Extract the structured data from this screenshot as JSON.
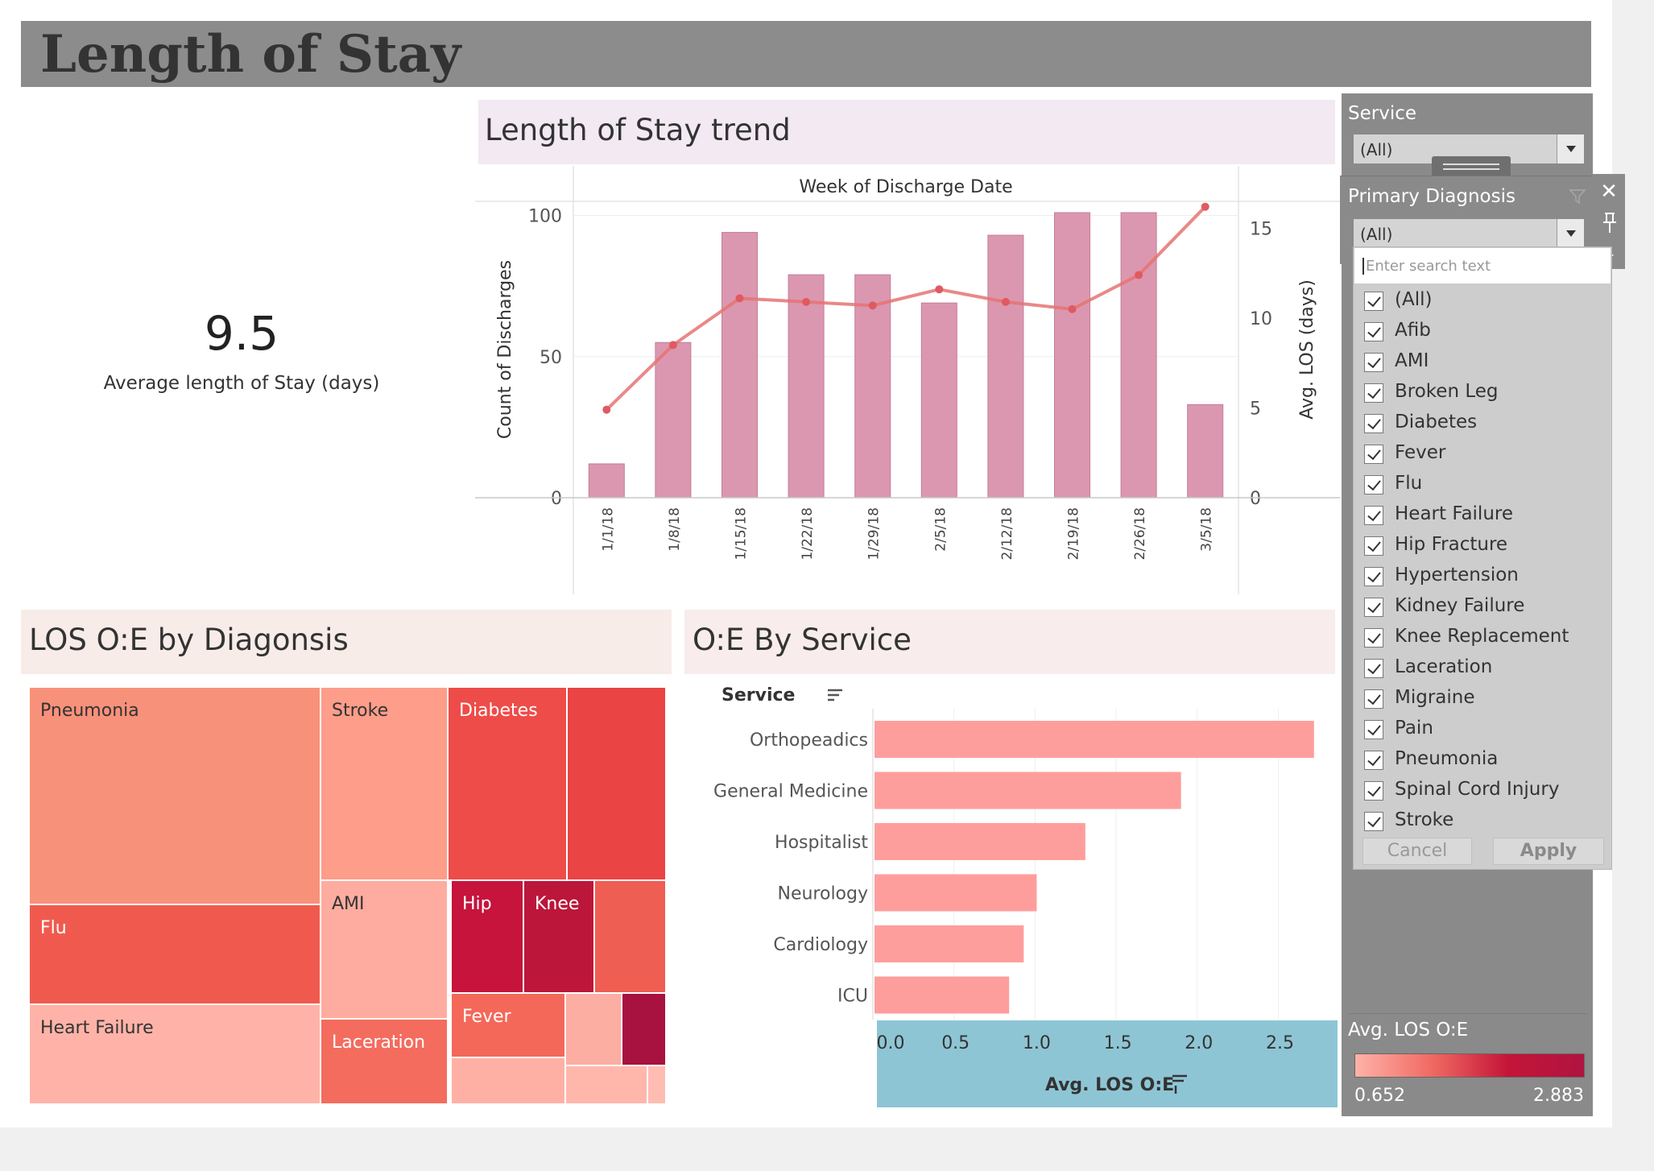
{
  "header": {
    "title": "Length of Stay"
  },
  "kpi": {
    "value": "9.5",
    "label": "Average length of Stay (days)"
  },
  "trend": {
    "title": "Length of Stay trend",
    "chart_data": {
      "type": "bar",
      "title": "Week of Discharge Date",
      "categories": [
        "1/1/18",
        "1/8/18",
        "1/15/18",
        "1/22/18",
        "1/29/18",
        "2/5/18",
        "2/12/18",
        "2/19/18",
        "2/26/18",
        "3/5/18"
      ],
      "series": [
        {
          "name": "Count of Discharges",
          "type": "bar",
          "axis": "left",
          "values": [
            12,
            55,
            94,
            79,
            79,
            69,
            93,
            101,
            101,
            33
          ],
          "color": "#dc97b0"
        },
        {
          "name": "Avg. LOS (days)",
          "type": "line",
          "axis": "right",
          "values": [
            4.9,
            8.5,
            11.1,
            10.9,
            10.7,
            11.6,
            10.9,
            10.5,
            12.4,
            16.2
          ],
          "color": "#e57373"
        }
      ],
      "ylabel": "Count of Discharges",
      "y2label": "Avg. LOS (days)",
      "ylim": [
        0,
        105
      ],
      "y2lim": [
        0,
        16.5
      ],
      "yticks": [
        "100",
        "50",
        "0"
      ],
      "yticks_values": [
        100,
        50,
        0
      ],
      "y2ticks": [
        "15",
        "10",
        "5",
        "0"
      ],
      "y2ticks_values": [
        15,
        10,
        5,
        0
      ],
      "grid": true
    }
  },
  "diagnosis": {
    "title": "LOS O:E by Diagonsis",
    "chart_data": {
      "type": "treemap",
      "cells": [
        {
          "label": "Pneumonia",
          "color": "#f8917a"
        },
        {
          "label": "Flu",
          "color": "#f05a4e"
        },
        {
          "label": "Heart Failure",
          "color": "#ffb3a8"
        },
        {
          "label": "Stroke",
          "color": "#fd9d8a"
        },
        {
          "label": "AMI",
          "color": "#ffaca0"
        },
        {
          "label": "Laceration",
          "color": "#f46c5e"
        },
        {
          "label": "Diabetes",
          "color": "#ee4c48"
        },
        {
          "label": "",
          "color": "#ea4444"
        },
        {
          "label": "Hip",
          "color": "#c6143c"
        },
        {
          "label": "Knee",
          "color": "#bc163a"
        },
        {
          "label": "",
          "color": "#ef5e52"
        },
        {
          "label": "Fever",
          "color": "#f4685a"
        },
        {
          "label": "",
          "color": "#fcaea3"
        },
        {
          "label": "",
          "color": "#a81240"
        },
        {
          "label": "",
          "color": "#ffb0a4"
        },
        {
          "label": "",
          "color": "#ffb7ac"
        },
        {
          "label": "",
          "color": "#ffbcb2"
        }
      ]
    }
  },
  "service": {
    "title": "O:E By Service",
    "chart_data": {
      "type": "bar",
      "orientation": "horizontal",
      "ylabel": "Service",
      "xlabel": "Avg. LOS O:E",
      "categories": [
        "Orthopeadics",
        "General Medicine",
        "Hospitalist",
        "Neurology",
        "Cardiology",
        "ICU"
      ],
      "values": [
        2.72,
        1.9,
        1.31,
        1.01,
        0.93,
        0.84
      ],
      "color": "#fe9e9c",
      "xlim": [
        0,
        2.85
      ],
      "xticks": [
        "0.0",
        "0.5",
        "1.0",
        "1.5",
        "2.0",
        "2.5"
      ],
      "xticks_values": [
        0,
        0.5,
        1.0,
        1.5,
        2.0,
        2.5
      ],
      "grid": true
    }
  },
  "filters": {
    "service": {
      "label": "Service",
      "value": "(All)"
    },
    "primary_diagnosis": {
      "label": "Primary Diagnosis",
      "value": "(All)",
      "search_placeholder": "Enter search text",
      "items": [
        "(All)",
        "Afib",
        "AMI",
        "Broken Leg",
        "Diabetes",
        "Fever",
        "Flu",
        "Heart Failure",
        "Hip Fracture",
        "Hypertension",
        "Kidney Failure",
        "Knee Replacement",
        "Laceration",
        "Migraine",
        "Pain",
        "Pneumonia",
        "Spinal Cord Injury",
        "Stroke"
      ],
      "cancel_label": "Cancel",
      "apply_label": "Apply"
    },
    "legend": {
      "label": "Avg. LOS O:E",
      "min": "0.652",
      "max": "2.883"
    }
  }
}
